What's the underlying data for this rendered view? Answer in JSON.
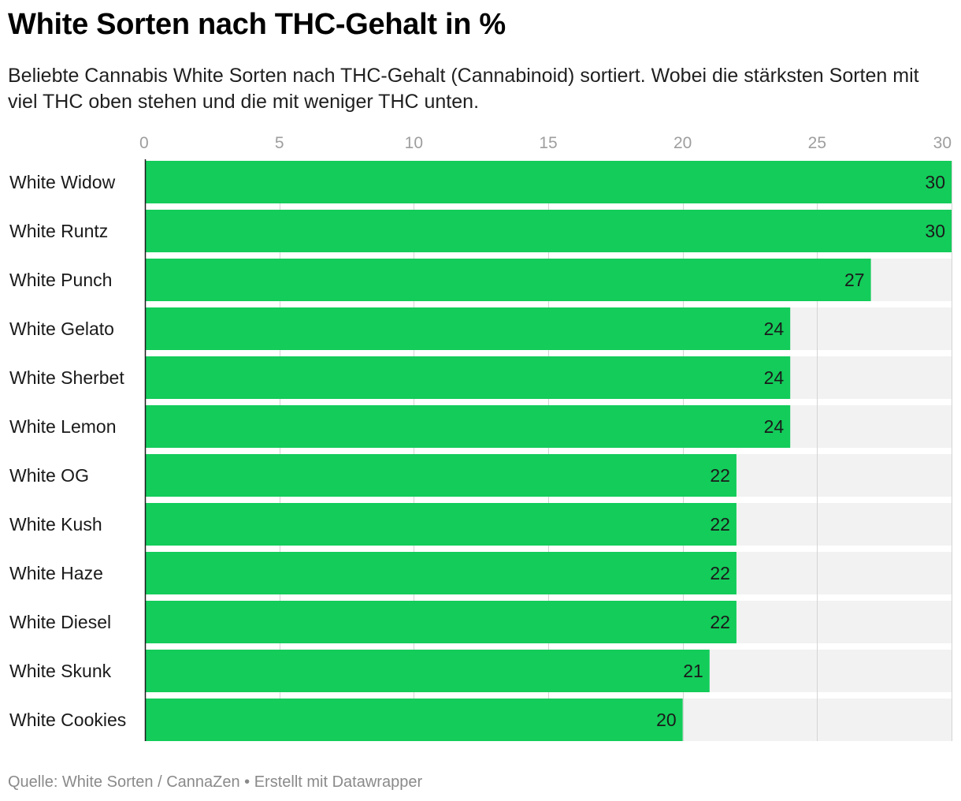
{
  "header": {
    "title": "White Sorten nach THC-Gehalt in %",
    "subtitle": "Beliebte Cannabis White Sorten nach THC-Gehalt (Cannabinoid) sortiert. Wobei die stärksten Sorten mit viel THC oben stehen und die mit weniger THC unten."
  },
  "footer": {
    "source": "Quelle: White Sorten / CannaZen • Erstellt mit Datawrapper"
  },
  "chart_data": {
    "type": "bar",
    "orientation": "horizontal",
    "title": "White Sorten nach THC-Gehalt in %",
    "subtitle": "Beliebte Cannabis White Sorten nach THC-Gehalt (Cannabinoid) sortiert. Wobei die stärksten Sorten mit viel THC oben stehen und die mit weniger THC unten.",
    "categories": [
      "White Widow",
      "White Runtz",
      "White Punch",
      "White Gelato",
      "White Sherbet",
      "White Lemon",
      "White OG",
      "White Kush",
      "White Haze",
      "White Diesel",
      "White Skunk",
      "White Cookies"
    ],
    "values": [
      30,
      30,
      27,
      24,
      24,
      24,
      22,
      22,
      22,
      22,
      21,
      20
    ],
    "xlim": [
      0,
      30
    ],
    "xticks": [
      "0",
      "5",
      "10",
      "15",
      "20",
      "25",
      "30"
    ],
    "xaxis_position": "top",
    "grid": true,
    "data_labels": true,
    "colors": {
      "bar": "#13cc5a",
      "track": "#f2f2f2",
      "grid": "#d4d4d4",
      "axis_line": "#1a1a1a",
      "tick_label": "#9e9e9e"
    }
  }
}
